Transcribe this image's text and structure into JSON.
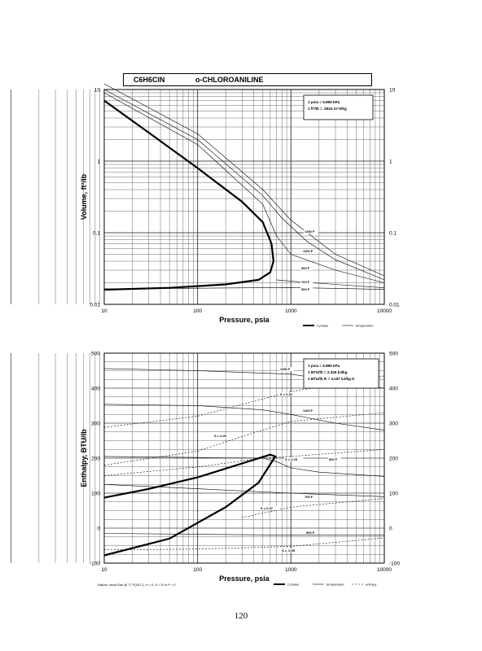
{
  "header": {
    "formula": "C6H6ClN",
    "name": "o-CHLOROANILINE"
  },
  "page_number": "120",
  "chart_data": [
    {
      "type": "line",
      "xlabel": "Pressure,  psia",
      "ylabel": "Volume, ft^3/lb",
      "x_scale": "log",
      "y_scale": "log",
      "xlim": [
        10,
        10000
      ],
      "ylim": [
        0.01,
        10
      ],
      "x_ticks": [
        "10",
        "100",
        "1000",
        "10000"
      ],
      "y_ticks": [
        "10",
        "1",
        "0.1",
        "0.01"
      ],
      "grid": true,
      "info_lines": [
        "1 psia = 6.895 kPa",
        "1 ft^3/lb = .0624 m^3/kg"
      ],
      "legend": [
        "2 phase",
        "temperature"
      ],
      "series": [
        {
          "style": "2 phase",
          "points": [
            [
              10,
              7
            ],
            [
              30,
              2.5
            ],
            [
              100,
              0.8
            ],
            [
              300,
              0.27
            ],
            [
              500,
              0.14
            ],
            [
              620,
              0.07
            ],
            [
              650,
              0.04
            ],
            [
              600,
              0.028
            ],
            [
              450,
              0.022
            ],
            [
              200,
              0.019
            ],
            [
              50,
              0.017
            ],
            [
              10,
              0.016
            ]
          ]
        },
        {
          "name": "1300 F",
          "points": [
            [
              10,
              12
            ],
            [
              100,
              2.4
            ],
            [
              500,
              0.4
            ],
            [
              1000,
              0.15
            ],
            [
              3000,
              0.05
            ],
            [
              10000,
              0.025
            ]
          ]
        },
        {
          "name": "1100 F",
          "points": [
            [
              10,
              10
            ],
            [
              100,
              2
            ],
            [
              500,
              0.33
            ],
            [
              800,
              0.16
            ],
            [
              1500,
              0.075
            ],
            [
              3000,
              0.042
            ],
            [
              10000,
              0.022
            ]
          ]
        },
        {
          "name": "900 F",
          "points": [
            [
              10,
              9
            ],
            [
              100,
              1.7
            ],
            [
              500,
              0.25
            ],
            [
              700,
              0.09
            ],
            [
              1000,
              0.05
            ],
            [
              3000,
              0.03
            ],
            [
              10000,
              0.02
            ]
          ]
        },
        {
          "name": "700 F",
          "points": [
            [
              700,
              0.022
            ],
            [
              1000,
              0.021
            ],
            [
              3000,
              0.019
            ],
            [
              10000,
              0.017
            ]
          ]
        },
        {
          "name": "500 F",
          "points": [
            [
              10,
              0.0165
            ],
            [
              100,
              0.0168
            ],
            [
              1000,
              0.0172
            ],
            [
              10000,
              0.0162
            ]
          ]
        }
      ],
      "labels": [
        "1300 F",
        "1100 F",
        "900 F",
        "700 F",
        "500 F"
      ]
    },
    {
      "type": "line",
      "xlabel": "Pressure,  psia",
      "ylabel": "Enthalpy, BTU/lb",
      "x_scale": "log",
      "y_scale": "linear",
      "xlim": [
        10,
        10000
      ],
      "ylim": [
        -100,
        500
      ],
      "x_ticks": [
        "10",
        "100",
        "1000",
        "10000"
      ],
      "y_ticks": [
        "500",
        "400",
        "300",
        "200",
        "100",
        "0",
        "-100"
      ],
      "grid": true,
      "info_lines": [
        "1 psia = 6.895 kPa",
        "1 BTU/lb = 2.326 kJ/kg",
        "1 BTU/lb R = 4.187 kJ/kg K"
      ],
      "legend": [
        "2 phase",
        "temperature",
        "entropy"
      ],
      "footnote": "Datum: Ideal Gas @ 77 F(25 C),  H = 0,  S = R ln P = 0",
      "series": [
        {
          "style": "2 phase",
          "points": [
            [
              10,
              87
            ],
            [
              30,
              112
            ],
            [
              100,
              145
            ],
            [
              300,
              185
            ],
            [
              600,
              210
            ],
            [
              680,
              205
            ],
            [
              450,
              130
            ],
            [
              200,
              60
            ],
            [
              50,
              -30
            ],
            [
              10,
              -78
            ]
          ]
        },
        {
          "name": "1300 F",
          "points": [
            [
              10,
              456
            ],
            [
              100,
              450
            ],
            [
              1000,
              440
            ],
            [
              10000,
              400
            ]
          ]
        },
        {
          "name": "1100 F",
          "points": [
            [
              10,
              354
            ],
            [
              100,
              350
            ],
            [
              500,
              338
            ],
            [
              1000,
              325
            ],
            [
              3000,
              300
            ],
            [
              10000,
              280
            ]
          ]
        },
        {
          "name": "900 F",
          "points": [
            [
              10,
              205
            ],
            [
              500,
              200
            ],
            [
              700,
              190
            ],
            [
              1000,
              172
            ],
            [
              2000,
              160
            ],
            [
              10000,
              148
            ]
          ]
        },
        {
          "name": "700 F",
          "points": [
            [
              10,
              125
            ],
            [
              1000,
              100
            ],
            [
              10000,
              90
            ]
          ]
        },
        {
          "name": "500 F",
          "points": [
            [
              10,
              -15
            ],
            [
              1000,
              -20
            ],
            [
              10000,
              -20
            ]
          ]
        },
        {
          "style": "entropy",
          "name": "S = 0.32",
          "points": [
            [
              10,
              288
            ],
            [
              100,
              320
            ],
            [
              1000,
              390
            ],
            [
              10000,
              435
            ]
          ]
        },
        {
          "style": "entropy",
          "name": "S = 0.25",
          "points": [
            [
              10,
              180
            ],
            [
              100,
              220
            ],
            [
              300,
              262
            ],
            [
              1000,
              305
            ],
            [
              10000,
              330
            ]
          ]
        },
        {
          "style": "entropy",
          "name": "S = 0.15",
          "points": [
            [
              10,
              150
            ],
            [
              100,
              175
            ],
            [
              500,
              200
            ],
            [
              1000,
              205
            ],
            [
              10000,
              225
            ]
          ]
        },
        {
          "style": "entropy",
          "name": "S = 0.07",
          "points": [
            [
              300,
              30
            ],
            [
              1000,
              60
            ],
            [
              10000,
              85
            ]
          ]
        },
        {
          "style": "entropy",
          "name": "S = -0.05",
          "points": [
            [
              10,
              -62
            ],
            [
              100,
              -60
            ],
            [
              1000,
              -52
            ],
            [
              10000,
              -28
            ]
          ]
        }
      ],
      "labels": [
        "1300 F",
        "1100 F",
        "900 F",
        "700 F",
        "500 F",
        "S = 0.32",
        "S = 0.25",
        "S = 0.15",
        "S = 0.07",
        "S = -0.05"
      ]
    }
  ]
}
